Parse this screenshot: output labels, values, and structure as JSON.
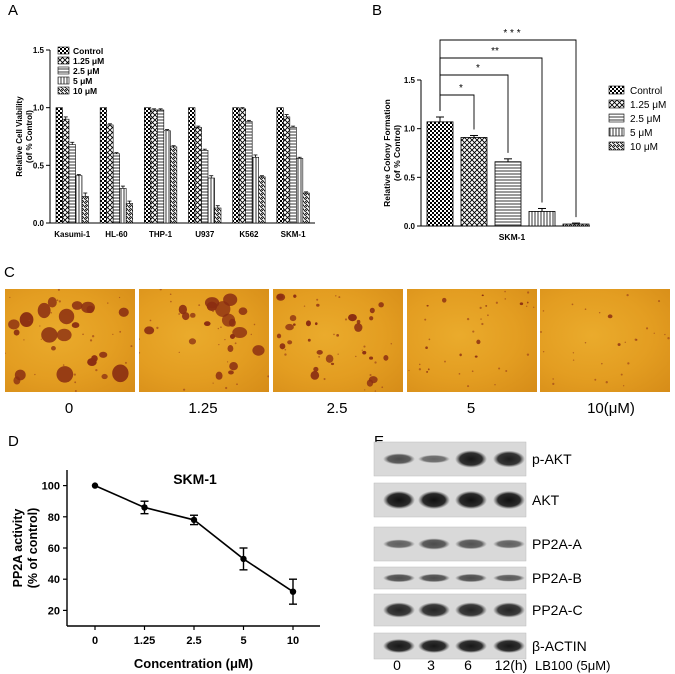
{
  "panels": {
    "A": "A",
    "B": "B",
    "C": "C",
    "D": "D",
    "E": "E"
  },
  "chart_data": [
    {
      "panel": "A",
      "type": "bar",
      "ylabel": "Relative Cell Viability (of % Control)",
      "ylabel_lines": [
        "Relative Cell Viability",
        "(of % Control)"
      ],
      "ylim": [
        0,
        1.5
      ],
      "yticks": [
        "0.0",
        "0.5",
        "1.0",
        "1.5"
      ],
      "categories": [
        "Kasumi-1",
        "HL-60",
        "THP-1",
        "U937",
        "K562",
        "SKM-1"
      ],
      "legend_position": "top-left",
      "series": [
        {
          "name": "Control",
          "values": [
            1.0,
            1.0,
            1.0,
            1.0,
            1.0,
            1.0
          ],
          "errors": [
            0,
            0,
            0,
            0,
            0,
            0
          ]
        },
        {
          "name": "1.25 μM",
          "values": [
            0.9,
            0.85,
            0.98,
            0.83,
            0.99,
            0.92
          ],
          "errors": [
            0.02,
            0.01,
            0.01,
            0.01,
            0.01,
            0.02
          ]
        },
        {
          "name": "2.5 μM",
          "values": [
            0.68,
            0.6,
            0.98,
            0.63,
            0.88,
            0.83
          ],
          "errors": [
            0.02,
            0.01,
            0.01,
            0.01,
            0.01,
            0.01
          ]
        },
        {
          "name": "5 μM",
          "values": [
            0.41,
            0.3,
            0.8,
            0.39,
            0.57,
            0.56
          ],
          "errors": [
            0.01,
            0.02,
            0.01,
            0.02,
            0.02,
            0.01
          ]
        },
        {
          "name": "10 μM",
          "values": [
            0.23,
            0.17,
            0.66,
            0.13,
            0.4,
            0.26
          ],
          "errors": [
            0.03,
            0.02,
            0.01,
            0.02,
            0.01,
            0.01
          ]
        }
      ]
    },
    {
      "panel": "B",
      "type": "bar",
      "ylabel": "Relative Colony Formation (of % Control)",
      "ylabel_lines": [
        "Relative Colony Formation",
        "(of % Control)"
      ],
      "ylim": [
        0,
        1.5
      ],
      "yticks": [
        "0.0",
        "0.5",
        "1.0",
        "1.5"
      ],
      "categories": [
        "SKM-1"
      ],
      "legend_position": "right",
      "series": [
        {
          "name": "Control",
          "values": [
            1.07
          ],
          "errors": [
            0.05
          ]
        },
        {
          "name": "1.25 μM",
          "values": [
            0.91
          ],
          "errors": [
            0.02
          ]
        },
        {
          "name": "2.5 μM",
          "values": [
            0.66
          ],
          "errors": [
            0.03
          ]
        },
        {
          "name": "5 μM",
          "values": [
            0.15
          ],
          "errors": [
            0.03
          ]
        },
        {
          "name": "10 μM",
          "values": [
            0.02
          ],
          "errors": [
            0.01
          ]
        }
      ],
      "significance": [
        "*",
        "*",
        "**",
        "* * *"
      ]
    },
    {
      "panel": "D",
      "type": "line",
      "title": "SKM-1",
      "xlabel": "Concentration (μM)",
      "ylabel": "PP2A activity (% of control)",
      "ylabel_lines": [
        "PP2A activity",
        "(% of control)"
      ],
      "x": [
        "0",
        "1.25",
        "2.5",
        "5",
        "10"
      ],
      "y": [
        100,
        86,
        78,
        53,
        32
      ],
      "errors": [
        0,
        4,
        3,
        7,
        8
      ],
      "ylim": [
        10,
        110
      ],
      "yticks": [
        "20",
        "40",
        "60",
        "80",
        "100"
      ]
    }
  ],
  "colony_panel": {
    "labels": [
      "0",
      "1.25",
      "2.5",
      "5",
      "10(μM)"
    ]
  },
  "western_blot": {
    "proteins": [
      "p-AKT",
      "AKT",
      "PP2A-A",
      "PP2A-B",
      "PP2A-C",
      "β-ACTIN"
    ],
    "timepoints": [
      "0",
      "3",
      "6",
      "12(h)"
    ],
    "treatment": "LB100 (5μM)"
  }
}
